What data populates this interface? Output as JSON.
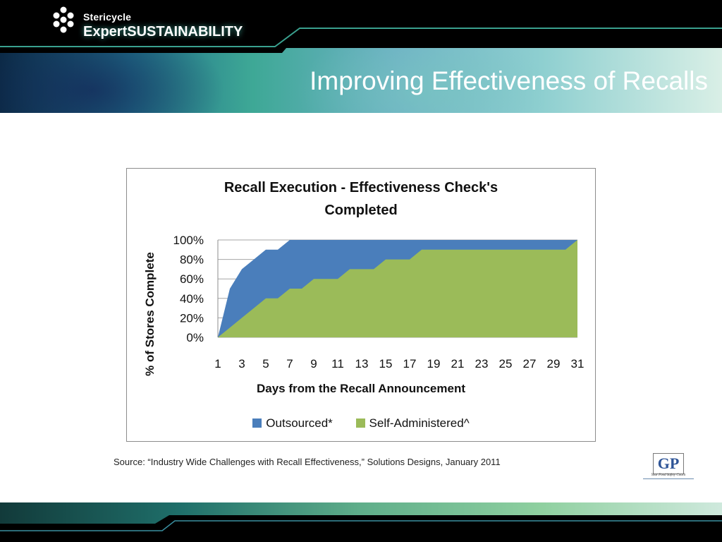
{
  "header": {
    "brand_small": "Stericycle",
    "brand_expert": "Expert",
    "brand_sustain": "SUSTAINABILITY",
    "title": "Improving Effectiveness of Recalls"
  },
  "chart_data": {
    "type": "area",
    "title_line1": "Recall Execution - Effectiveness Check's",
    "title_line2": "Completed",
    "xlabel": "Days from the Recall Announcement",
    "ylabel": "% of Stores Complete",
    "ylim": [
      0,
      100
    ],
    "y_ticks": [
      "0%",
      "20%",
      "40%",
      "60%",
      "80%",
      "100%"
    ],
    "x": [
      1,
      2,
      3,
      4,
      5,
      6,
      7,
      8,
      9,
      10,
      11,
      12,
      13,
      14,
      15,
      16,
      17,
      18,
      19,
      20,
      21,
      22,
      23,
      24,
      25,
      26,
      27,
      28,
      29,
      30,
      31
    ],
    "x_tick_labels": [
      "1",
      "3",
      "5",
      "7",
      "9",
      "11",
      "13",
      "15",
      "17",
      "19",
      "21",
      "23",
      "25",
      "27",
      "29",
      "31"
    ],
    "series": [
      {
        "name": "Outsourced*",
        "color": "#4a7ebb",
        "values": [
          0,
          50,
          70,
          80,
          90,
          90,
          100,
          100,
          100,
          100,
          100,
          100,
          100,
          100,
          100,
          100,
          100,
          100,
          100,
          100,
          100,
          100,
          100,
          100,
          100,
          100,
          100,
          100,
          100,
          100,
          100
        ]
      },
      {
        "name": "Self-Administered^",
        "color": "#9bbb59",
        "values": [
          0,
          10,
          20,
          30,
          40,
          40,
          50,
          50,
          60,
          60,
          60,
          70,
          70,
          70,
          80,
          80,
          80,
          90,
          90,
          90,
          90,
          90,
          90,
          90,
          90,
          90,
          90,
          90,
          90,
          90,
          100
        ]
      }
    ],
    "grid": true,
    "legend_position": "bottom"
  },
  "footer": {
    "source": "Source: “Industry Wide Challenges with Recall Effectiveness,” Solutions Designs, January 2011",
    "gp_letters": "GP",
    "gp_tagline": "Your Food Safety Coach"
  }
}
